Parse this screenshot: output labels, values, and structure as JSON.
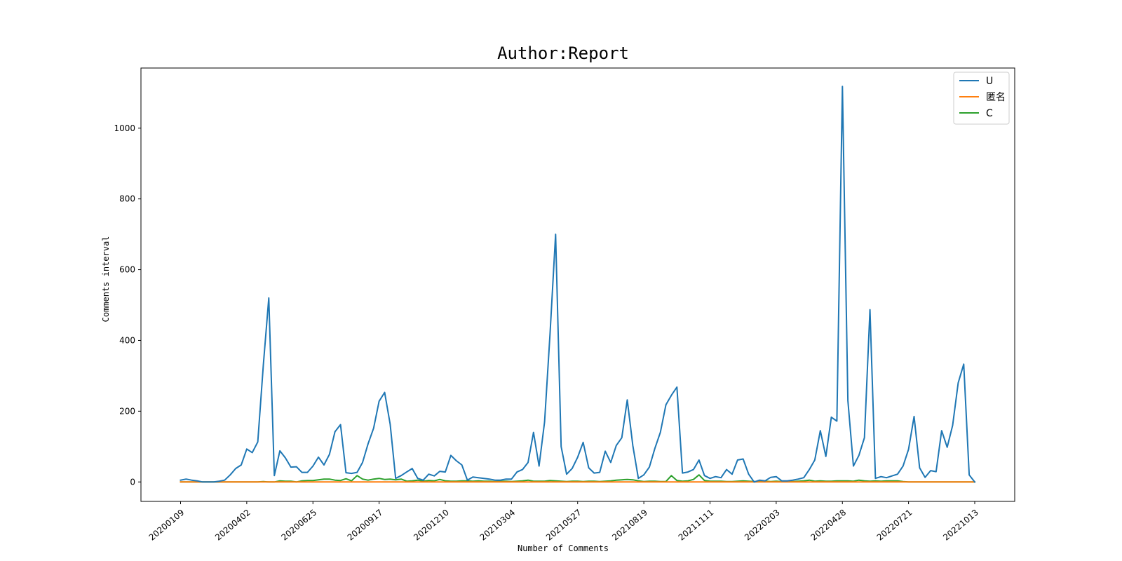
{
  "chart_data": {
    "type": "line",
    "title": "Author:Report",
    "xlabel": "Number of Comments",
    "ylabel": "Comments interval",
    "ylim": [
      -55,
      1170
    ],
    "yticks": [
      0,
      200,
      400,
      600,
      800,
      1000
    ],
    "xtick_labels": [
      "20200109",
      "20200402",
      "20200625",
      "20200917",
      "20201210",
      "20210304",
      "20210527",
      "20210819",
      "20211111",
      "20220203",
      "20220428",
      "20220721",
      "20221013"
    ],
    "xtick_every": 12,
    "grid": false,
    "legend_position": "top-right",
    "series": [
      {
        "name": "U",
        "color": "#1f77b4",
        "values": [
          5,
          8,
          5,
          3,
          0,
          0,
          0,
          2,
          5,
          20,
          38,
          48,
          93,
          83,
          113,
          330,
          520,
          18,
          88,
          68,
          42,
          43,
          27,
          27,
          45,
          70,
          48,
          78,
          142,
          162,
          26,
          24,
          27,
          55,
          108,
          152,
          228,
          253,
          163,
          10,
          18,
          28,
          38,
          10,
          5,
          22,
          17,
          30,
          28,
          75,
          60,
          48,
          5,
          14,
          12,
          10,
          8,
          5,
          5,
          8,
          8,
          28,
          35,
          55,
          140,
          45,
          170,
          420,
          700,
          100,
          22,
          38,
          70,
          112,
          40,
          25,
          27,
          87,
          55,
          103,
          125,
          232,
          103,
          10,
          20,
          42,
          95,
          140,
          218,
          245,
          268,
          25,
          28,
          35,
          62,
          18,
          10,
          15,
          12,
          35,
          22,
          62,
          65,
          22,
          0,
          5,
          3,
          13,
          15,
          3,
          3,
          5,
          8,
          12,
          35,
          62,
          145,
          72,
          183,
          172,
          1118,
          230,
          45,
          75,
          125,
          487,
          10,
          15,
          12,
          17,
          22,
          45,
          92,
          185,
          40,
          13,
          32,
          29,
          145,
          98,
          160,
          280,
          333,
          20,
          0
        ]
      },
      {
        "name": "匿名",
        "color": "#ff7f0e",
        "values": [
          0,
          0,
          0,
          0,
          0,
          0,
          0,
          0,
          0,
          0,
          0,
          0,
          0,
          0,
          0,
          0,
          0,
          0,
          0,
          0,
          0,
          0,
          0,
          0,
          0,
          0,
          0,
          0,
          0,
          0,
          0,
          0,
          0,
          0,
          0,
          0,
          0,
          0,
          0,
          0,
          0,
          0,
          0,
          0,
          0,
          0,
          0,
          0,
          0,
          0,
          0,
          0,
          0,
          0,
          0,
          0,
          0,
          0,
          0,
          0,
          0,
          0,
          0,
          0,
          0,
          0,
          0,
          0,
          0,
          0,
          0,
          0,
          0,
          0,
          0,
          0,
          0,
          0,
          0,
          0,
          0,
          0,
          0,
          0,
          0,
          0,
          0,
          0,
          0,
          0,
          0,
          0,
          0,
          0,
          0,
          0,
          0,
          0,
          0,
          0,
          0,
          0,
          0,
          0,
          0,
          0,
          0,
          0,
          0,
          0,
          0,
          0,
          0,
          0,
          0,
          0,
          0,
          0,
          0,
          0,
          0,
          0,
          0,
          0,
          0,
          0,
          0,
          0,
          0,
          0,
          0,
          0,
          0,
          0,
          0,
          0,
          0,
          0,
          0,
          0,
          0,
          0,
          0,
          0,
          0
        ]
      },
      {
        "name": "C",
        "color": "#2ca02c",
        "values": [
          0,
          0,
          0,
          0,
          0,
          0,
          0,
          0,
          0,
          0,
          0,
          0,
          0,
          0,
          0,
          1,
          0,
          0,
          3,
          2,
          2,
          0,
          3,
          4,
          4,
          6,
          8,
          8,
          5,
          4,
          9,
          3,
          18,
          8,
          5,
          8,
          10,
          7,
          8,
          6,
          8,
          2,
          3,
          5,
          2,
          4,
          3,
          7,
          3,
          2,
          2,
          3,
          3,
          2,
          3,
          2,
          2,
          1,
          2,
          2,
          1,
          2,
          3,
          5,
          2,
          2,
          2,
          4,
          3,
          2,
          1,
          2,
          2,
          1,
          2,
          2,
          1,
          2,
          3,
          5,
          6,
          7,
          6,
          3,
          1,
          2,
          2,
          1,
          1,
          18,
          4,
          2,
          3,
          7,
          20,
          4,
          2,
          2,
          2,
          1,
          1,
          2,
          3,
          2,
          1,
          1,
          2,
          1,
          2,
          1,
          1,
          1,
          2,
          3,
          5,
          2,
          3,
          2,
          2,
          3,
          3,
          3,
          2,
          5,
          3,
          2,
          3,
          2,
          3,
          3,
          3,
          1,
          0,
          0,
          0,
          0,
          0,
          0,
          0,
          0,
          0,
          0,
          0,
          0,
          0
        ]
      }
    ]
  }
}
